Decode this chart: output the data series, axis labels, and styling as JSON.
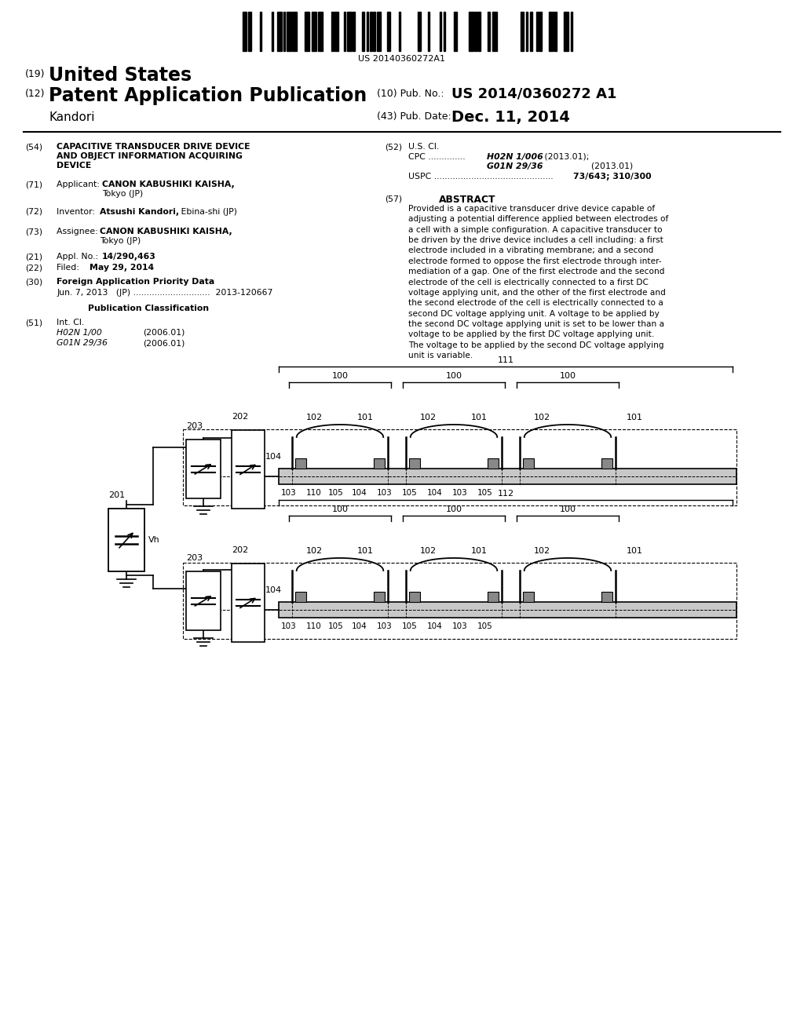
{
  "bg_color": "#ffffff",
  "barcode_text": "US 20140360272A1",
  "title_19_small": "(19)",
  "title_19_big": "United States",
  "title_12_small": "(12)",
  "title_12_big": "Patent Application Publication",
  "pub_no_label": "(10) Pub. No.:",
  "pub_no_value": "US 2014/0360272 A1",
  "pub_date_label": "(43) Pub. Date:",
  "pub_date_value": "Dec. 11, 2014",
  "inventor_last": "Kandori"
}
